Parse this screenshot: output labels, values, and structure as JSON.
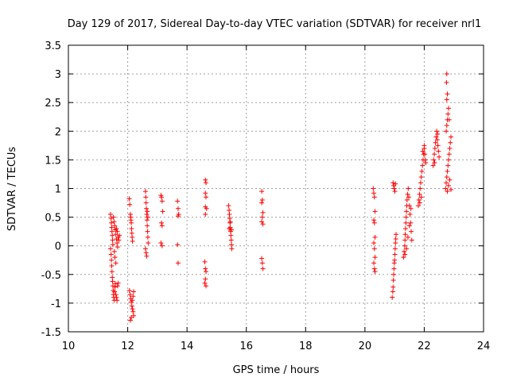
{
  "chart_data": {
    "type": "scatter",
    "title": "Day 129 of 2017, Sidereal Day-to-day VTEC variation (SDTVAR) for receiver nrl1",
    "xlabel": "GPS time / hours",
    "ylabel": "SDTVAR / TECUs",
    "xlim": [
      10,
      24
    ],
    "ylim": [
      -1.5,
      3.5
    ],
    "xticks": [
      "10",
      "12",
      "14",
      "16",
      "18",
      "20",
      "22",
      "24"
    ],
    "yticks": [
      "-1.5",
      "-1",
      "-0.5",
      "0",
      "0.5",
      "1",
      "1.5",
      "2",
      "2.5",
      "3",
      "3.5"
    ],
    "grid": true,
    "marker": "+",
    "marker_color": "#ff0000",
    "series": [
      {
        "name": "SDTVAR",
        "points": [
          [
            11.42,
            0.55
          ],
          [
            11.44,
            0.48
          ],
          [
            11.45,
            0.4
          ],
          [
            11.46,
            0.32
          ],
          [
            11.47,
            0.25
          ],
          [
            11.48,
            0.18
          ],
          [
            11.49,
            0.1
          ],
          [
            11.5,
            0.02
          ],
          [
            11.42,
            -0.05
          ],
          [
            11.44,
            -0.15
          ],
          [
            11.45,
            -0.25
          ],
          [
            11.46,
            -0.35
          ],
          [
            11.47,
            -0.45
          ],
          [
            11.48,
            -0.55
          ],
          [
            11.49,
            -0.62
          ],
          [
            11.5,
            -0.7
          ],
          [
            11.51,
            -0.78
          ],
          [
            11.52,
            -0.85
          ],
          [
            11.53,
            -0.9
          ],
          [
            11.55,
            -0.95
          ],
          [
            11.56,
            -0.8
          ],
          [
            11.57,
            -0.72
          ],
          [
            11.58,
            -0.66
          ],
          [
            11.52,
            0.5
          ],
          [
            11.54,
            0.42
          ],
          [
            11.56,
            0.35
          ],
          [
            11.58,
            0.28
          ],
          [
            11.6,
            0.2
          ],
          [
            11.62,
            0.12
          ],
          [
            11.64,
            0.05
          ],
          [
            11.66,
            -0.02
          ],
          [
            11.55,
            -0.1
          ],
          [
            11.57,
            -0.2
          ],
          [
            11.6,
            -0.3
          ],
          [
            11.62,
            0.3
          ],
          [
            11.65,
            0.25
          ],
          [
            11.68,
            0.15
          ],
          [
            11.7,
            0.1
          ],
          [
            11.72,
            0.18
          ],
          [
            11.6,
            -0.85
          ],
          [
            11.62,
            -0.9
          ],
          [
            11.64,
            -0.95
          ],
          [
            11.66,
            -0.7
          ],
          [
            11.68,
            -0.65
          ],
          [
            12.05,
            0.82
          ],
          [
            12.07,
            0.72
          ],
          [
            12.09,
            0.55
          ],
          [
            12.1,
            0.5
          ],
          [
            12.11,
            0.45
          ],
          [
            12.12,
            0.4
          ],
          [
            12.13,
            0.3
          ],
          [
            12.14,
            0.22
          ],
          [
            12.15,
            0.15
          ],
          [
            12.16,
            0.08
          ],
          [
            12.06,
            -0.78
          ],
          [
            12.08,
            -0.85
          ],
          [
            12.1,
            -0.92
          ],
          [
            12.12,
            -0.98
          ],
          [
            12.14,
            -1.05
          ],
          [
            12.16,
            -1.1
          ],
          [
            12.18,
            -1.15
          ],
          [
            12.2,
            -1.22
          ],
          [
            12.09,
            -1.3
          ],
          [
            12.12,
            -1.25
          ],
          [
            12.15,
            -0.95
          ],
          [
            12.18,
            -0.88
          ],
          [
            12.2,
            -0.8
          ],
          [
            12.6,
            0.95
          ],
          [
            12.61,
            0.85
          ],
          [
            12.62,
            0.75
          ],
          [
            12.63,
            0.65
          ],
          [
            12.64,
            0.55
          ],
          [
            12.65,
            0.45
          ],
          [
            12.66,
            0.35
          ],
          [
            12.67,
            0.25
          ],
          [
            12.68,
            0.15
          ],
          [
            12.69,
            0.05
          ],
          [
            12.6,
            -0.05
          ],
          [
            12.62,
            -0.12
          ],
          [
            12.64,
            -0.18
          ],
          [
            12.66,
            0.6
          ],
          [
            12.68,
            0.5
          ],
          [
            13.12,
            0.88
          ],
          [
            13.14,
            0.85
          ],
          [
            13.16,
            0.78
          ],
          [
            13.18,
            0.6
          ],
          [
            13.14,
            0.4
          ],
          [
            13.16,
            0.35
          ],
          [
            13.12,
            0.05
          ],
          [
            13.16,
            0.0
          ],
          [
            13.68,
            0.78
          ],
          [
            13.7,
            0.65
          ],
          [
            13.72,
            0.55
          ],
          [
            13.7,
            0.52
          ],
          [
            13.68,
            0.02
          ],
          [
            13.7,
            -0.3
          ],
          [
            14.62,
            1.15
          ],
          [
            14.64,
            1.1
          ],
          [
            14.62,
            0.92
          ],
          [
            14.64,
            0.85
          ],
          [
            14.62,
            0.68
          ],
          [
            14.66,
            0.65
          ],
          [
            14.62,
            0.55
          ],
          [
            14.6,
            -0.28
          ],
          [
            14.62,
            -0.4
          ],
          [
            14.64,
            -0.45
          ],
          [
            14.62,
            -0.58
          ],
          [
            14.6,
            -0.65
          ],
          [
            14.64,
            -0.7
          ],
          [
            15.4,
            0.7
          ],
          [
            15.42,
            0.62
          ],
          [
            15.43,
            0.55
          ],
          [
            15.44,
            0.48
          ],
          [
            15.45,
            0.4
          ],
          [
            15.46,
            0.32
          ],
          [
            15.47,
            0.25
          ],
          [
            15.48,
            0.18
          ],
          [
            15.49,
            0.1
          ],
          [
            15.5,
            0.02
          ],
          [
            15.51,
            -0.05
          ],
          [
            15.42,
            0.3
          ],
          [
            15.46,
            0.42
          ],
          [
            15.5,
            0.28
          ],
          [
            16.52,
            0.95
          ],
          [
            16.54,
            0.8
          ],
          [
            16.52,
            0.75
          ],
          [
            16.56,
            0.58
          ],
          [
            16.54,
            0.5
          ],
          [
            16.52,
            0.42
          ],
          [
            16.56,
            0.38
          ],
          [
            16.52,
            -0.22
          ],
          [
            16.54,
            -0.3
          ],
          [
            16.56,
            -0.4
          ],
          [
            20.28,
            1.0
          ],
          [
            20.3,
            0.92
          ],
          [
            20.32,
            0.85
          ],
          [
            20.34,
            0.6
          ],
          [
            20.3,
            0.45
          ],
          [
            20.32,
            0.4
          ],
          [
            20.34,
            0.15
          ],
          [
            20.3,
            0.05
          ],
          [
            20.32,
            -0.05
          ],
          [
            20.34,
            -0.2
          ],
          [
            20.3,
            -0.3
          ],
          [
            20.32,
            -0.4
          ],
          [
            20.34,
            -0.45
          ],
          [
            20.92,
            -0.9
          ],
          [
            20.94,
            -0.8
          ],
          [
            20.95,
            -0.72
          ],
          [
            20.96,
            -0.6
          ],
          [
            20.97,
            -0.5
          ],
          [
            20.98,
            -0.4
          ],
          [
            20.99,
            -0.3
          ],
          [
            21.0,
            -0.25
          ],
          [
            21.01,
            -0.15
          ],
          [
            21.02,
            -0.05
          ],
          [
            21.03,
            0.05
          ],
          [
            21.04,
            0.12
          ],
          [
            21.05,
            0.2
          ],
          [
            20.95,
            1.1
          ],
          [
            20.97,
            1.05
          ],
          [
            20.99,
            1.0
          ],
          [
            21.01,
            0.95
          ],
          [
            21.03,
            1.08
          ],
          [
            21.3,
            -0.2
          ],
          [
            21.32,
            -0.1
          ],
          [
            21.34,
            0.0
          ],
          [
            21.35,
            0.1
          ],
          [
            21.36,
            0.2
          ],
          [
            21.37,
            0.3
          ],
          [
            21.38,
            0.4
          ],
          [
            21.39,
            0.5
          ],
          [
            21.4,
            0.6
          ],
          [
            21.41,
            0.7
          ],
          [
            21.42,
            0.8
          ],
          [
            21.44,
            0.9
          ],
          [
            21.46,
            1.0
          ],
          [
            21.48,
            0.85
          ],
          [
            21.5,
            0.7
          ],
          [
            21.52,
            0.55
          ],
          [
            21.54,
            0.4
          ],
          [
            21.56,
            0.25
          ],
          [
            21.58,
            0.1
          ],
          [
            21.35,
            -0.15
          ],
          [
            21.4,
            -0.05
          ],
          [
            21.45,
            0.15
          ],
          [
            21.5,
            0.35
          ],
          [
            21.55,
            0.65
          ],
          [
            21.8,
            0.7
          ],
          [
            21.82,
            0.8
          ],
          [
            21.84,
            0.9
          ],
          [
            21.86,
            1.0
          ],
          [
            21.88,
            1.1
          ],
          [
            21.9,
            1.2
          ],
          [
            21.92,
            1.3
          ],
          [
            21.94,
            1.4
          ],
          [
            21.96,
            1.5
          ],
          [
            21.98,
            1.6
          ],
          [
            22.0,
            1.7
          ],
          [
            22.02,
            1.6
          ],
          [
            22.04,
            1.5
          ],
          [
            21.85,
            0.75
          ],
          [
            21.9,
            0.85
          ],
          [
            21.95,
            1.65
          ],
          [
            22.0,
            1.75
          ],
          [
            22.05,
            1.45
          ],
          [
            22.3,
            1.4
          ],
          [
            22.32,
            1.5
          ],
          [
            22.34,
            1.6
          ],
          [
            22.36,
            1.7
          ],
          [
            22.38,
            1.8
          ],
          [
            22.4,
            1.9
          ],
          [
            22.42,
            2.0
          ],
          [
            22.44,
            1.85
          ],
          [
            22.46,
            1.75
          ],
          [
            22.48,
            1.65
          ],
          [
            22.5,
            1.55
          ],
          [
            22.35,
            1.45
          ],
          [
            22.45,
            1.95
          ],
          [
            22.72,
            1.0
          ],
          [
            22.74,
            1.1
          ],
          [
            22.76,
            1.2
          ],
          [
            22.78,
            1.3
          ],
          [
            22.8,
            1.4
          ],
          [
            22.82,
            1.5
          ],
          [
            22.84,
            1.6
          ],
          [
            22.86,
            1.7
          ],
          [
            22.88,
            1.8
          ],
          [
            22.9,
            1.9
          ],
          [
            22.74,
            2.0
          ],
          [
            22.76,
            2.1
          ],
          [
            22.78,
            2.2
          ],
          [
            22.8,
            2.3
          ],
          [
            22.82,
            2.4
          ],
          [
            22.84,
            2.2
          ],
          [
            22.76,
            2.55
          ],
          [
            22.78,
            2.65
          ],
          [
            22.75,
            2.85
          ],
          [
            22.76,
            3.0
          ],
          [
            22.78,
            0.95
          ],
          [
            22.82,
            1.05
          ],
          [
            22.86,
            1.15
          ],
          [
            22.9,
            0.98
          ]
        ]
      }
    ]
  }
}
